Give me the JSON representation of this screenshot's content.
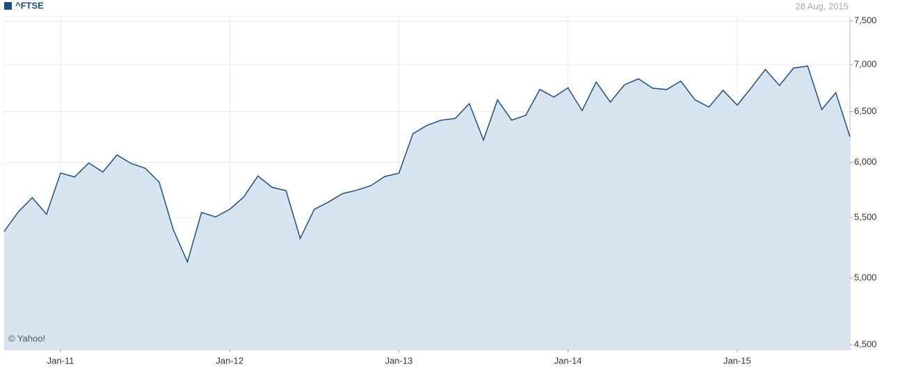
{
  "chart_data": {
    "type": "area",
    "legend": "^FTSE",
    "date": "28 Aug, 2015",
    "watermark": "© Yahoo!",
    "series": [
      {
        "name": "^FTSE",
        "color": "#1f4e7e",
        "fill": "#d6e4f0",
        "x": [
          "2010-08",
          "2010-09",
          "2010-10",
          "2010-11",
          "2010-12",
          "2011-01",
          "2011-02",
          "2011-03",
          "2011-04",
          "2011-05",
          "2011-06",
          "2011-07",
          "2011-08",
          "2011-09",
          "2011-10",
          "2011-11",
          "2011-12",
          "2012-01",
          "2012-02",
          "2012-03",
          "2012-04",
          "2012-05",
          "2012-06",
          "2012-07",
          "2012-08",
          "2012-09",
          "2012-10",
          "2012-11",
          "2012-12",
          "2013-01",
          "2013-02",
          "2013-03",
          "2013-04",
          "2013-05",
          "2013-06",
          "2013-07",
          "2013-08",
          "2013-09",
          "2013-10",
          "2013-11",
          "2013-12",
          "2014-01",
          "2014-02",
          "2014-03",
          "2014-04",
          "2014-05",
          "2014-06",
          "2014-07",
          "2014-08",
          "2014-09",
          "2014-10",
          "2014-11",
          "2014-12",
          "2015-01",
          "2015-02",
          "2015-03",
          "2015-04",
          "2015-05",
          "2015-06",
          "2015-07",
          "2015-08"
        ],
        "values": [
          5380,
          5549,
          5675,
          5528,
          5900,
          5863,
          5994,
          5909,
          6070,
          5990,
          5945,
          5815,
          5395,
          5128,
          5544,
          5505,
          5572,
          5681,
          5872,
          5768,
          5738,
          5321,
          5571,
          5635,
          5711,
          5742,
          5783,
          5867,
          5898,
          6277,
          6361,
          6412,
          6430,
          6583,
          6215,
          6621,
          6413,
          6462,
          6731,
          6651,
          6749,
          6510,
          6810,
          6598,
          6780,
          6845,
          6744,
          6730,
          6820,
          6623,
          6546,
          6723,
          6566,
          6749,
          6947,
          6773,
          6961,
          6984,
          6521,
          6696,
          6248
        ]
      }
    ],
    "xticks": [
      {
        "value": "2011-01",
        "label": "Jan-11"
      },
      {
        "value": "2012-01",
        "label": "Jan-12"
      },
      {
        "value": "2013-01",
        "label": "Jan-13"
      },
      {
        "value": "2014-01",
        "label": "Jan-14"
      },
      {
        "value": "2015-01",
        "label": "Jan-15"
      }
    ],
    "ylim": [
      4500,
      7500
    ],
    "yticks": [
      {
        "value": 4500,
        "label": "4,500"
      },
      {
        "value": 5000,
        "label": "5,000"
      },
      {
        "value": 5500,
        "label": "5,500"
      },
      {
        "value": 6000,
        "label": "6,000"
      },
      {
        "value": 6500,
        "label": "6,500"
      },
      {
        "value": 7000,
        "label": "7,000"
      },
      {
        "value": 7500,
        "label": "7,500"
      }
    ],
    "log_scale": true,
    "grid": true
  }
}
